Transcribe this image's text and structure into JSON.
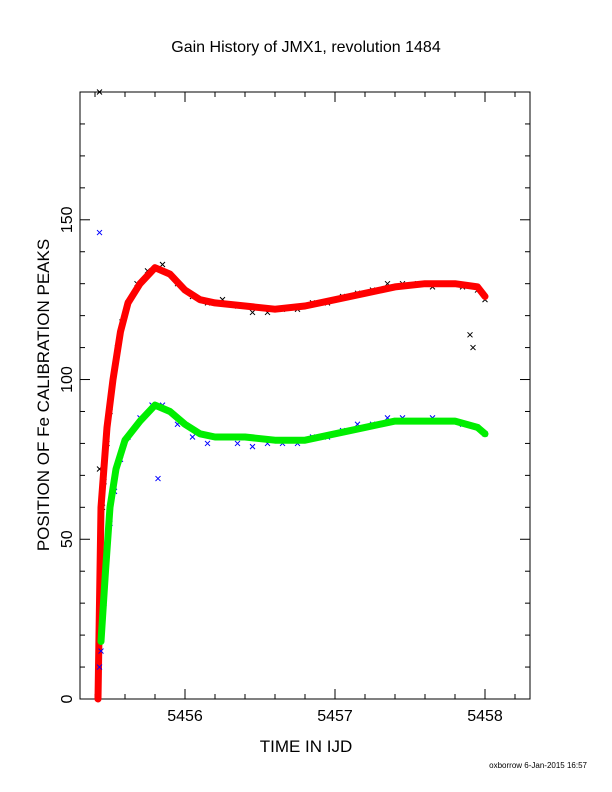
{
  "chart_data": {
    "type": "scatter",
    "title": "Gain History of JMX1, revolution 1484",
    "xlabel": "TIME IN IJD",
    "ylabel": "POSITION OF Fe CALIBRATION PEAKS",
    "xlim": [
      5455.3,
      5458.3
    ],
    "ylim": [
      0,
      190
    ],
    "xticks": [
      5456,
      5457,
      5458
    ],
    "yticks": [
      0,
      50,
      100,
      150
    ],
    "grid": false,
    "footer": "oxborrow  6-Jan-2015 16:57",
    "colors": {
      "upper_points": "#000000",
      "upper_fit": "#ff0000",
      "lower_points": "#0000ff",
      "lower_fit": "#00ee00"
    },
    "series": [
      {
        "role": "upper_points",
        "points": [
          [
            5455.43,
            190
          ],
          [
            5455.43,
            72
          ],
          [
            5455.45,
            60
          ],
          [
            5455.46,
            68
          ],
          [
            5455.48,
            80
          ],
          [
            5455.5,
            90
          ],
          [
            5455.52,
            100
          ],
          [
            5455.55,
            110
          ],
          [
            5455.58,
            118
          ],
          [
            5455.62,
            124
          ],
          [
            5455.68,
            130
          ],
          [
            5455.75,
            134
          ],
          [
            5455.85,
            136
          ],
          [
            5455.95,
            130
          ],
          [
            5456.05,
            126
          ],
          [
            5456.15,
            124
          ],
          [
            5456.25,
            125
          ],
          [
            5456.35,
            123
          ],
          [
            5456.45,
            121
          ],
          [
            5456.55,
            121
          ],
          [
            5456.65,
            122
          ],
          [
            5456.75,
            122
          ],
          [
            5456.85,
            124
          ],
          [
            5456.95,
            124
          ],
          [
            5457.05,
            126
          ],
          [
            5457.15,
            127
          ],
          [
            5457.25,
            128
          ],
          [
            5457.35,
            130
          ],
          [
            5457.45,
            130
          ],
          [
            5457.55,
            130
          ],
          [
            5457.65,
            129
          ],
          [
            5457.75,
            130
          ],
          [
            5457.85,
            129
          ],
          [
            5457.95,
            128
          ],
          [
            5458.0,
            125
          ],
          [
            5457.92,
            110
          ],
          [
            5457.9,
            114
          ]
        ]
      },
      {
        "role": "upper_fit",
        "points": [
          [
            5455.42,
            0
          ],
          [
            5455.44,
            60
          ],
          [
            5455.48,
            85
          ],
          [
            5455.52,
            100
          ],
          [
            5455.57,
            115
          ],
          [
            5455.62,
            124
          ],
          [
            5455.7,
            130
          ],
          [
            5455.8,
            135
          ],
          [
            5455.9,
            133
          ],
          [
            5456.0,
            128
          ],
          [
            5456.1,
            125
          ],
          [
            5456.2,
            124
          ],
          [
            5456.4,
            123
          ],
          [
            5456.6,
            122
          ],
          [
            5456.8,
            123
          ],
          [
            5457.0,
            125
          ],
          [
            5457.2,
            127
          ],
          [
            5457.4,
            129
          ],
          [
            5457.6,
            130
          ],
          [
            5457.8,
            130
          ],
          [
            5457.95,
            129
          ],
          [
            5458.0,
            126
          ]
        ]
      },
      {
        "role": "lower_points",
        "points": [
          [
            5455.43,
            146
          ],
          [
            5455.43,
            10
          ],
          [
            5455.44,
            15
          ],
          [
            5455.46,
            30
          ],
          [
            5455.48,
            45
          ],
          [
            5455.5,
            55
          ],
          [
            5455.53,
            65
          ],
          [
            5455.57,
            75
          ],
          [
            5455.62,
            82
          ],
          [
            5455.7,
            88
          ],
          [
            5455.78,
            92
          ],
          [
            5455.85,
            92
          ],
          [
            5455.82,
            69
          ],
          [
            5455.95,
            86
          ],
          [
            5456.05,
            82
          ],
          [
            5456.15,
            80
          ],
          [
            5456.25,
            82
          ],
          [
            5456.35,
            80
          ],
          [
            5456.45,
            79
          ],
          [
            5456.55,
            80
          ],
          [
            5456.65,
            80
          ],
          [
            5456.75,
            80
          ],
          [
            5456.85,
            82
          ],
          [
            5456.95,
            82
          ],
          [
            5457.05,
            84
          ],
          [
            5457.15,
            86
          ],
          [
            5457.25,
            86
          ],
          [
            5457.35,
            88
          ],
          [
            5457.45,
            88
          ],
          [
            5457.55,
            87
          ],
          [
            5457.65,
            88
          ],
          [
            5457.75,
            87
          ],
          [
            5457.85,
            86
          ],
          [
            5457.95,
            85
          ],
          [
            5458.0,
            83
          ]
        ]
      },
      {
        "role": "lower_fit",
        "points": [
          [
            5455.44,
            18
          ],
          [
            5455.47,
            40
          ],
          [
            5455.5,
            60
          ],
          [
            5455.54,
            72
          ],
          [
            5455.6,
            81
          ],
          [
            5455.7,
            87
          ],
          [
            5455.8,
            92
          ],
          [
            5455.9,
            90
          ],
          [
            5456.0,
            86
          ],
          [
            5456.1,
            83
          ],
          [
            5456.2,
            82
          ],
          [
            5456.4,
            82
          ],
          [
            5456.6,
            81
          ],
          [
            5456.8,
            81
          ],
          [
            5457.0,
            83
          ],
          [
            5457.2,
            85
          ],
          [
            5457.4,
            87
          ],
          [
            5457.6,
            87
          ],
          [
            5457.8,
            87
          ],
          [
            5457.95,
            85
          ],
          [
            5458.0,
            83
          ]
        ]
      }
    ]
  }
}
